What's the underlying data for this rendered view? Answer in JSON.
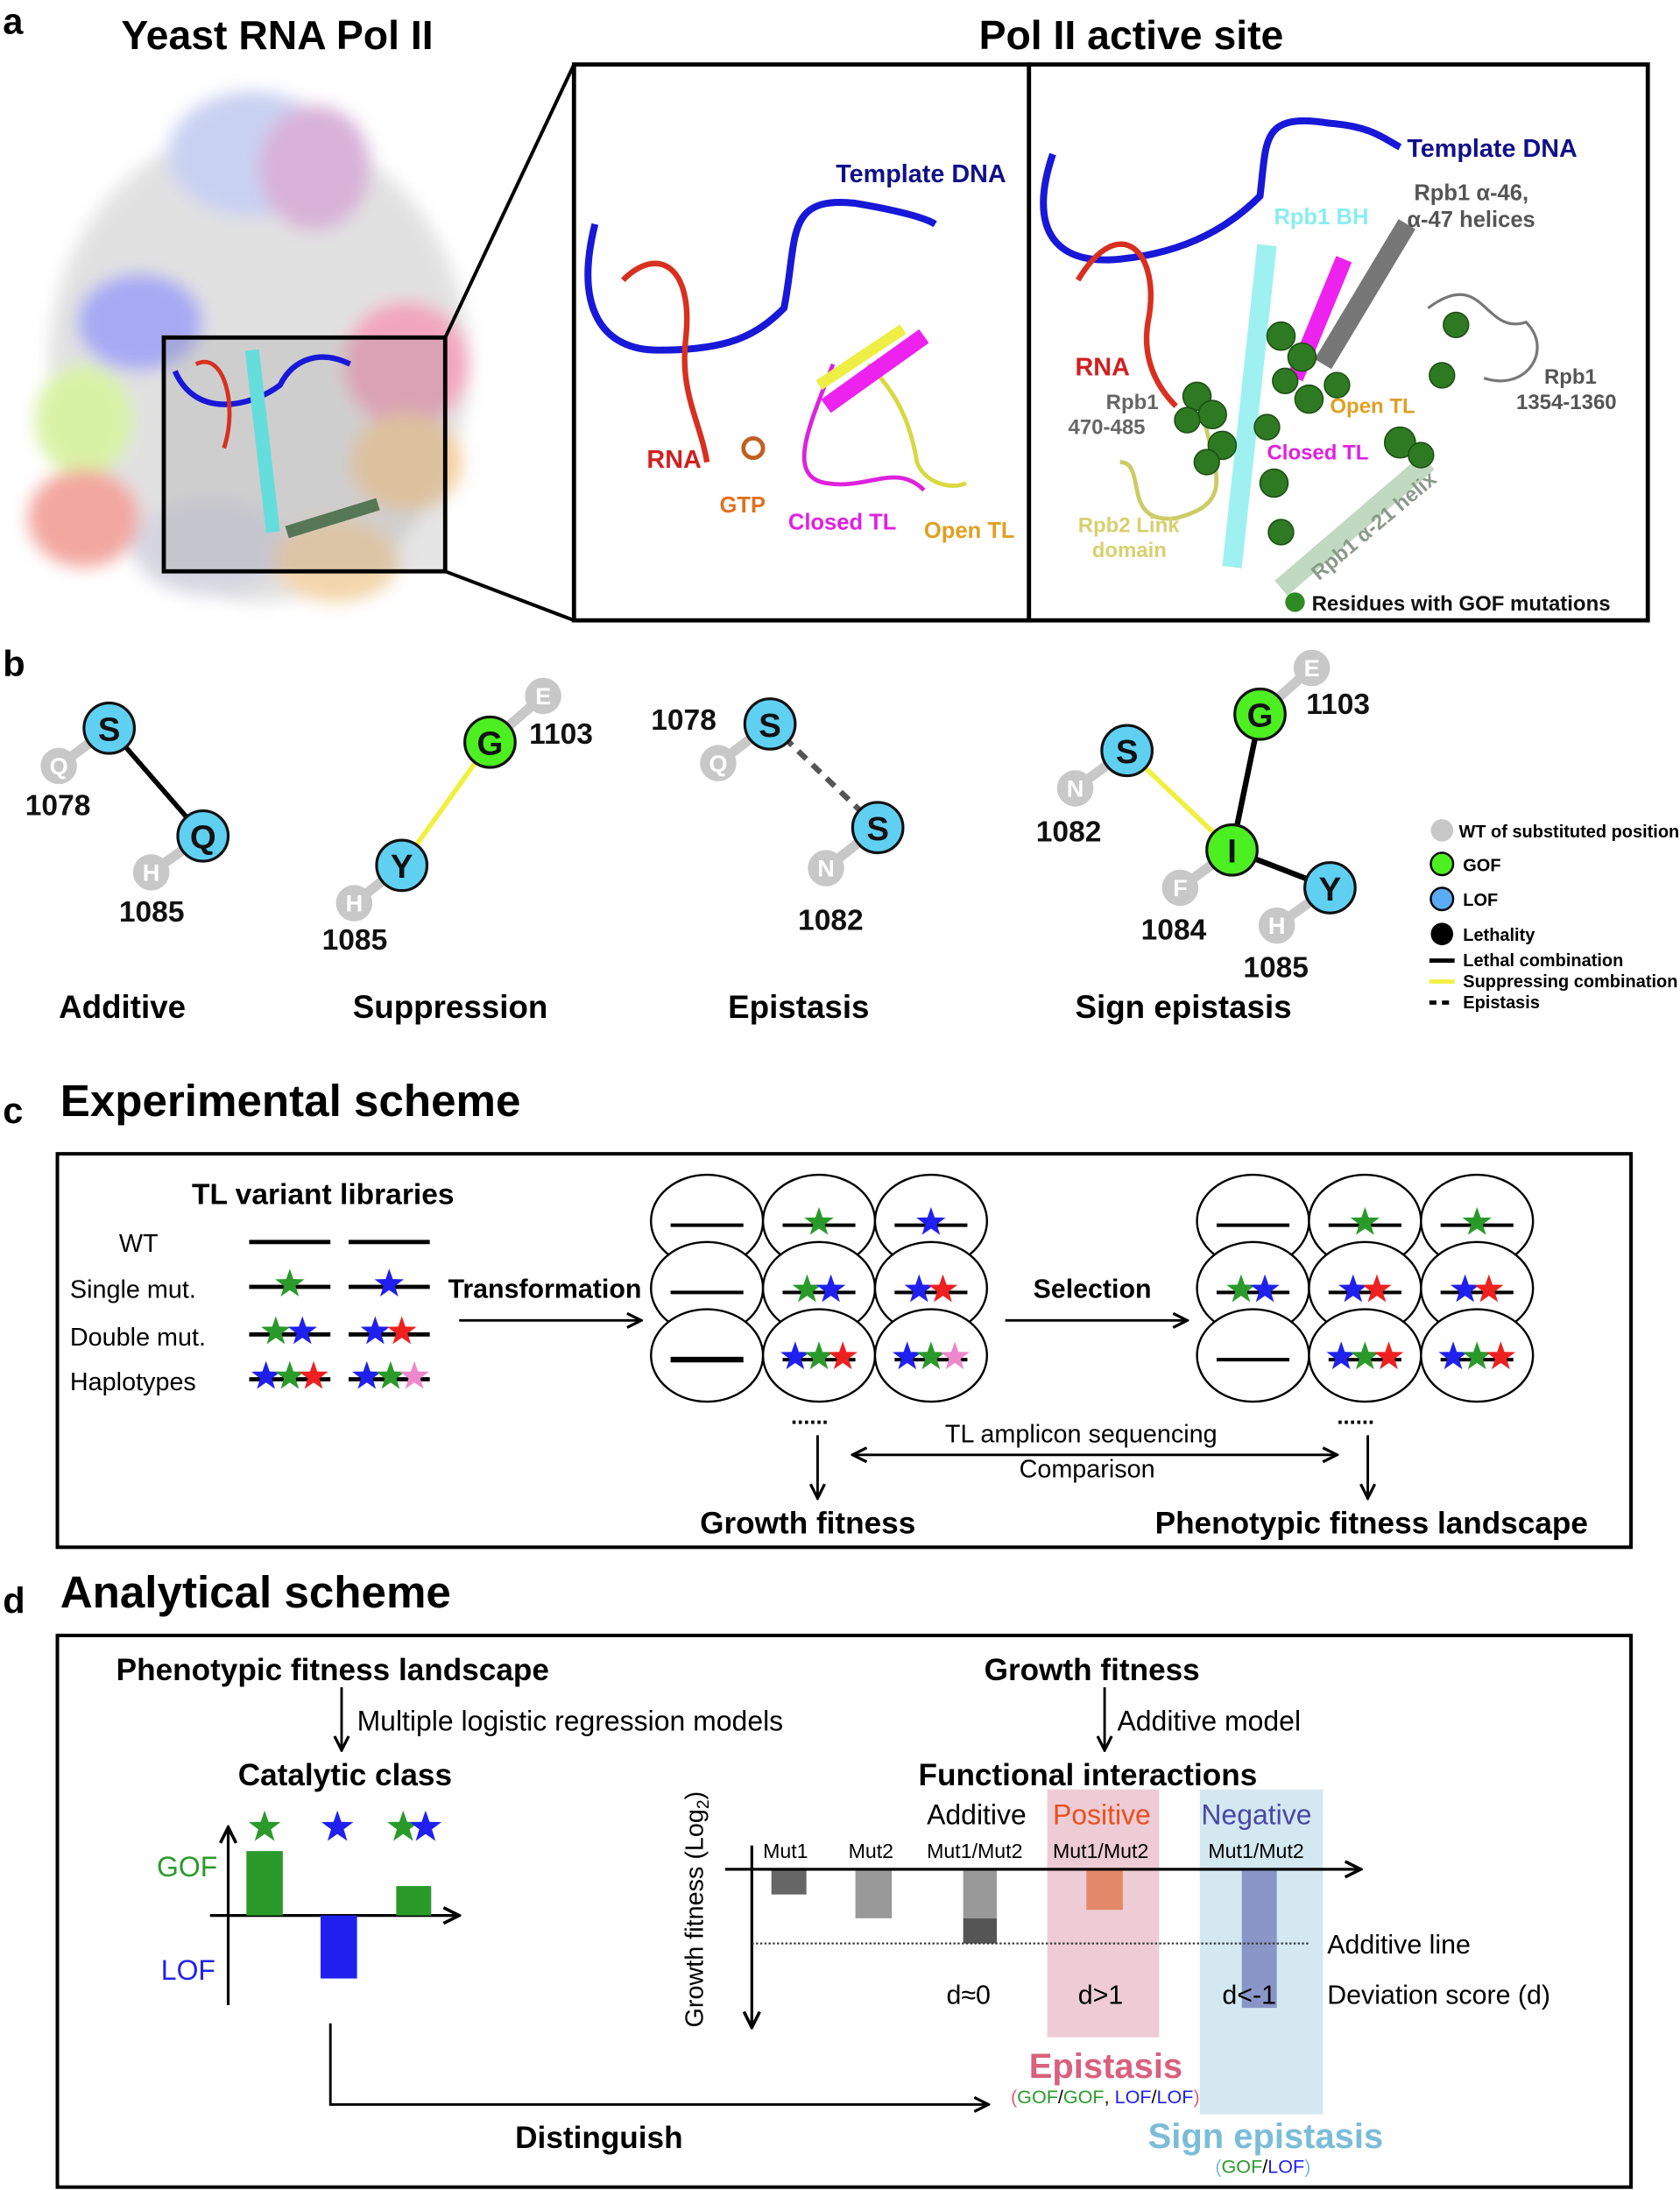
{
  "panel_a": {
    "letter": "a",
    "title_left": "Yeast RNA Pol II",
    "title_right": "Pol II active site",
    "mid": {
      "template_dna": "Template DNA",
      "rna": "RNA",
      "gtp": "GTP",
      "closed_tl": "Closed TL",
      "open_tl": "Open TL"
    },
    "right": {
      "template_dna": "Template DNA",
      "rpb1_a46": "Rpb1 α-46,",
      "rpb1_a47": "α-47 helices",
      "rpb1_bh": "Rpb1 BH",
      "rna": "RNA",
      "rpb1_470_l1": "Rpb1",
      "rpb1_470_l2": "470-485",
      "open_tl": "Open TL",
      "closed_tl": "Closed TL",
      "rpb1_1354_l1": "Rpb1",
      "rpb1_1354_l2": "1354-1360",
      "rpb2_link_l1": "Rpb2 Link",
      "rpb2_link_l2": "domain",
      "rpb1_a21": "Rpb1 α-21 helix",
      "legend": "Residues with GOF mutations"
    }
  },
  "panel_b": {
    "letter": "b",
    "additive": {
      "title": "Additive",
      "n1": "S",
      "w1": "Q",
      "p1": "1078",
      "n2": "Q",
      "w2": "H",
      "p2": "1085"
    },
    "suppression": {
      "title": "Suppression",
      "n1": "G",
      "w1": "E",
      "p1": "1103",
      "n2": "Y",
      "w2": "H",
      "p2": "1085"
    },
    "epistasis": {
      "title": "Epistasis",
      "n1": "S",
      "w1": "Q",
      "p1": "1078",
      "n2": "S",
      "w2": "N",
      "p2": "1082"
    },
    "sign_epistasis": {
      "title": "Sign epistasis",
      "n1": "S",
      "w1": "N",
      "p1": "1082",
      "n2": "G",
      "w2": "E",
      "p2": "1103",
      "n3": "I",
      "w3": "F",
      "p3": "1084",
      "n4": "Y",
      "w4": "H",
      "p4": "1085"
    },
    "legend": [
      "WT of substituted position",
      "GOF",
      "LOF",
      "Lethality",
      "Lethal combination",
      "Suppressing combination",
      "Epistasis"
    ],
    "colors": {
      "wt": "#c8c8c8",
      "gof": "#4cf020",
      "lof": "#5aaaf5",
      "lethal": "#000000",
      "suppressing": "#f0f040",
      "cyan_node": "#5fd0f2"
    }
  },
  "panel_c": {
    "letter": "c",
    "title": "Experimental scheme",
    "libraries_title": "TL variant libraries",
    "rows": [
      "WT",
      "Single mut.",
      "Double mut.",
      "Haplotypes"
    ],
    "transformation": "Transformation",
    "selection": "Selection",
    "dots": "......",
    "sequencing": "TL amplicon sequencing",
    "comparison": "Comparison",
    "growth_fitness": "Growth fitness",
    "landscape": "Phenotypic fitness landscape"
  },
  "panel_d": {
    "letter": "d",
    "title": "Analytical scheme",
    "landscape": "Phenotypic fitness landscape",
    "logistic": "Multiple logistic regression models",
    "catalytic_class": "Catalytic class",
    "gof": "GOF",
    "lof": "LOF",
    "distinguish": "Distinguish",
    "growth_fitness": "Growth fitness",
    "additive_model": "Additive model",
    "functional_interactions": "Functional interactions",
    "additive": "Additive",
    "positive": "Positive",
    "negative": "Negative",
    "mut1": "Mut1",
    "mut2": "Mut2",
    "mut12": "Mut1/Mut2",
    "y_label": "Growth fitness (Log",
    "y_label_sub": "2",
    "y_label_end": ")",
    "additive_line": "Additive line",
    "d_zero": "d≈0",
    "d_pos": "d>1",
    "d_neg": "d<-1",
    "deviation": "Deviation score (d)",
    "epistasis": "Epistasis",
    "epistasis_sub": {
      "open": "(",
      "a": "GOF",
      "s1": "/",
      "b": "GOF",
      "comma": ", ",
      "c": "LOF",
      "s2": "/",
      "d": "LOF",
      "close": ")"
    },
    "sign_epistasis": "Sign epistasis",
    "sign_sub": {
      "open": "(",
      "a": "GOF",
      "s": "/",
      "b": "LOF",
      "close": ")"
    },
    "colors": {
      "positive": "#e8501e",
      "negative": "#4a46a8",
      "epistasis": "#d9607e",
      "sign_epistasis": "#7bbcd8",
      "gof": "#2a9a2a",
      "lof": "#2020e8"
    }
  }
}
